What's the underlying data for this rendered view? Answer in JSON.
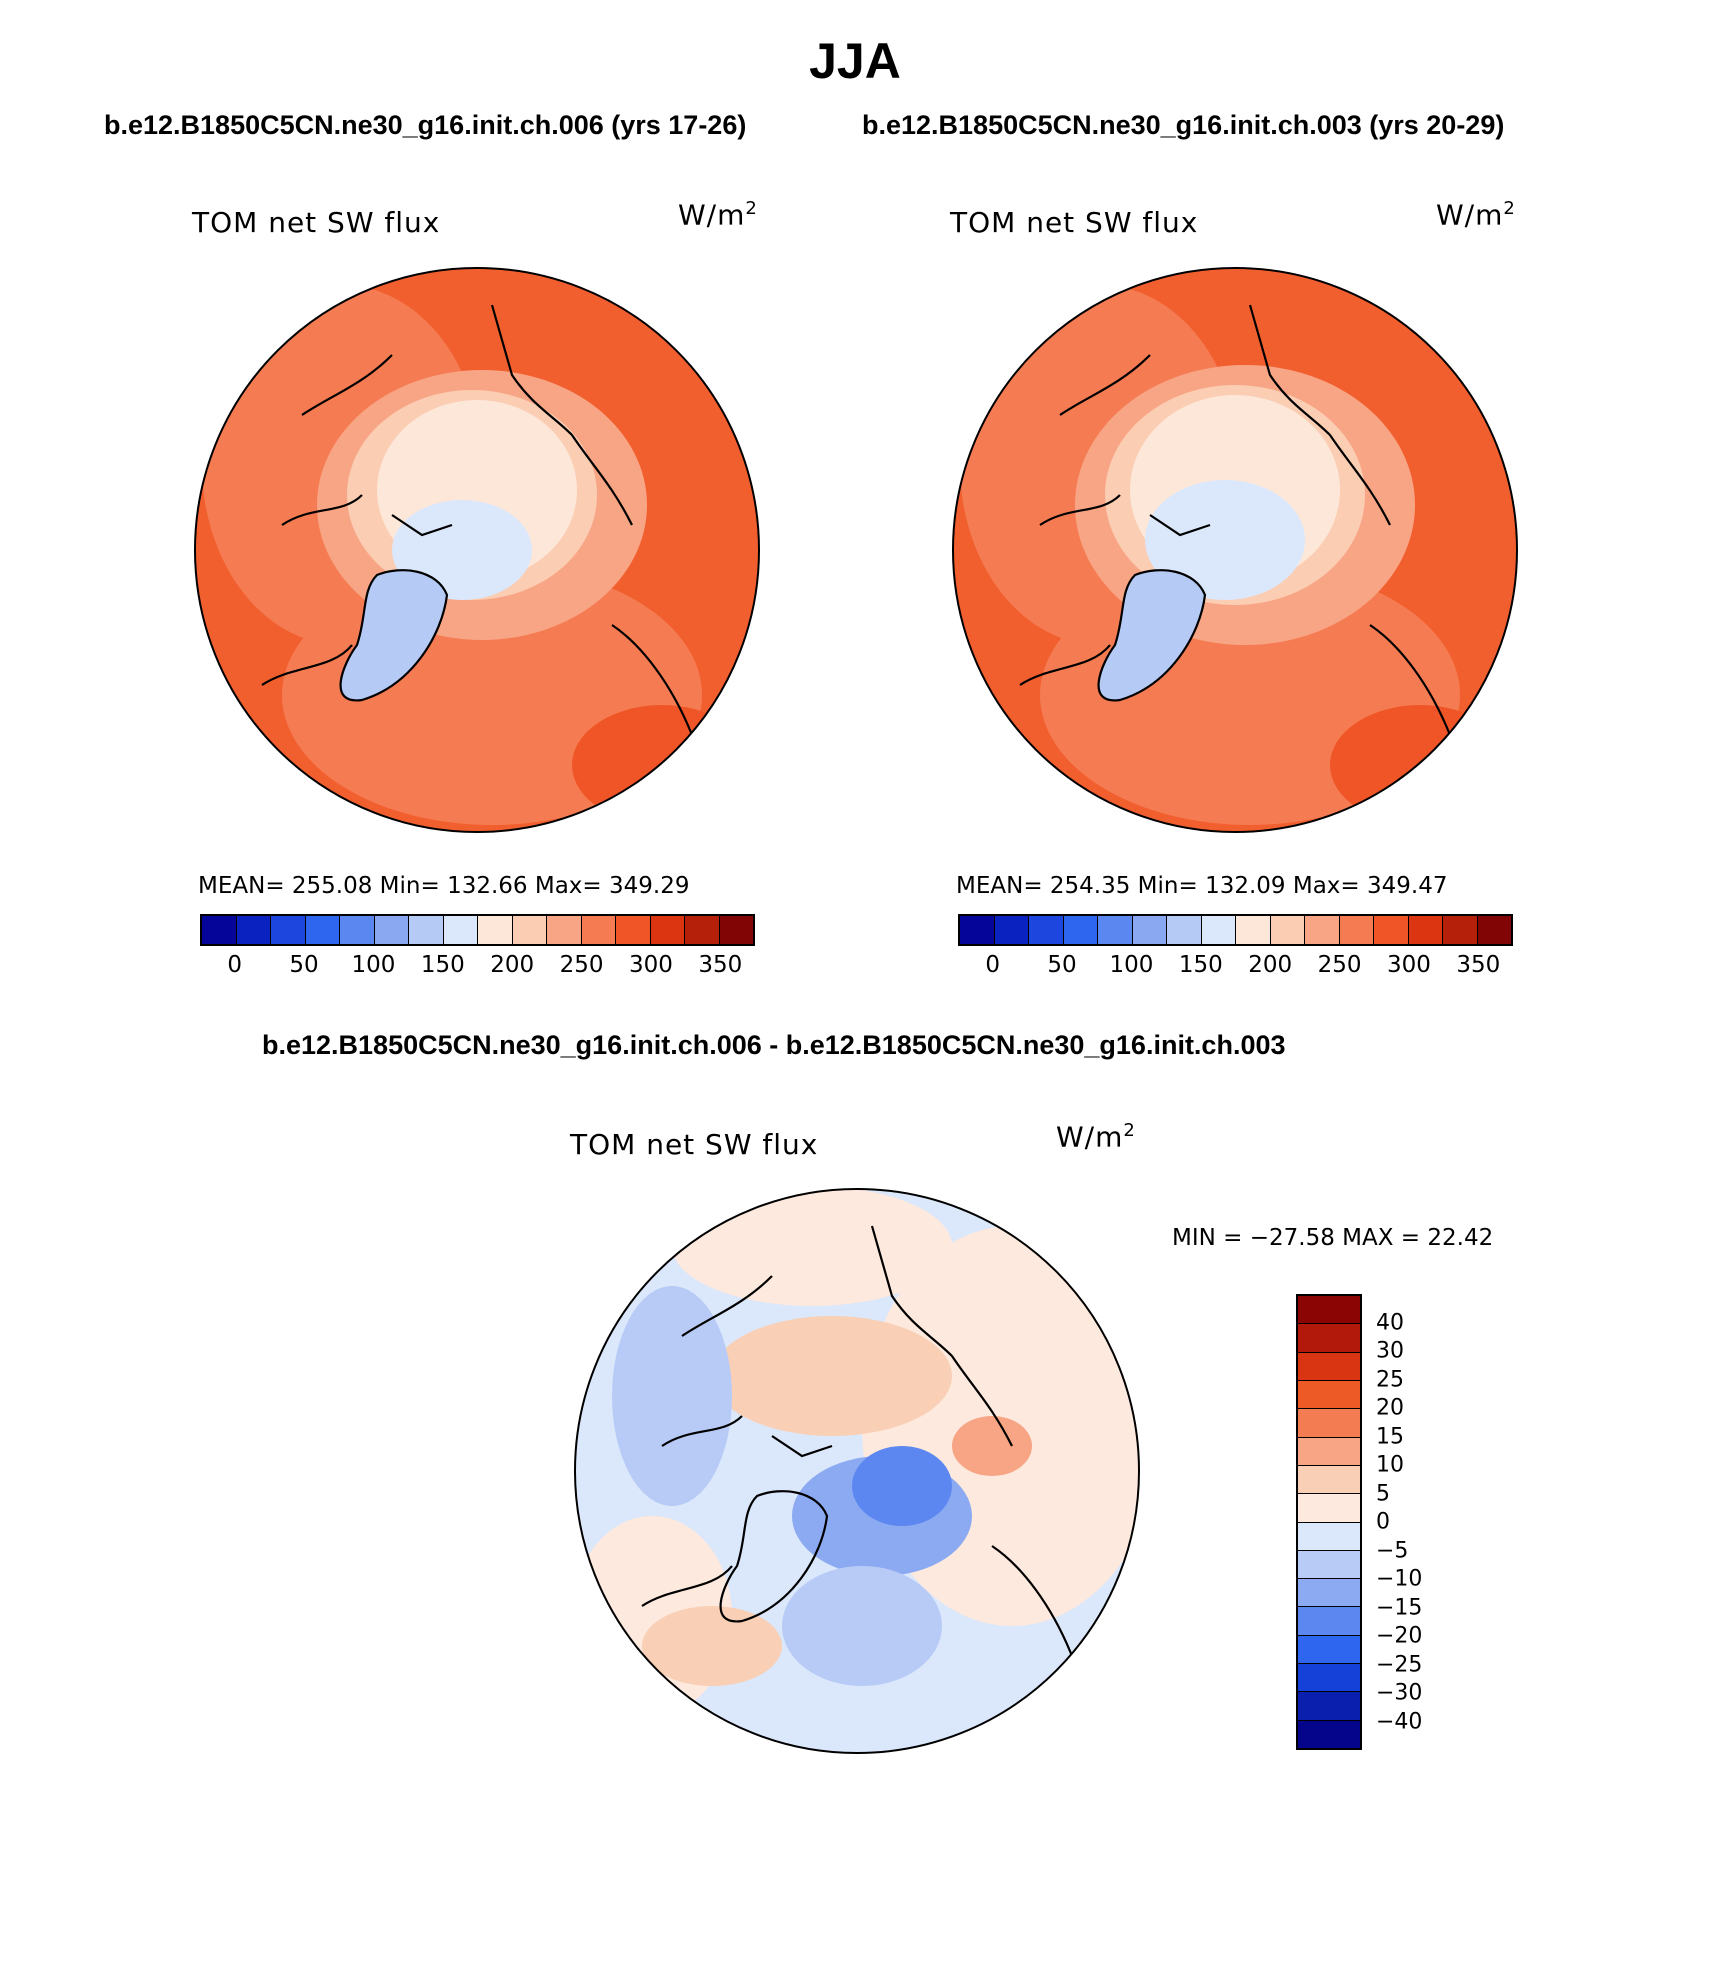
{
  "figure": {
    "title": "JJA",
    "subtitle_left": "b.e12.B1850C5CN.ne30_g16.init.ch.006 (yrs 17-26)",
    "subtitle_right": "b.e12.B1850C5CN.ne30_g16.init.ch.003 (yrs 20-29)",
    "diff_title": "b.e12.B1850C5CN.ne30_g16.init.ch.006 - b.e12.B1850C5CN.ne30_g16.init.ch.003"
  },
  "panels": [
    {
      "variable": "TOM net SW flux",
      "units_base": "W/m",
      "units_sup": "2",
      "stats": "MEAN= 255.08   Min= 132.66   Max= 349.29",
      "colorbar_ticks": [
        "0",
        "50",
        "100",
        "150",
        "200",
        "250",
        "300",
        "350"
      ]
    },
    {
      "variable": "TOM net SW flux",
      "units_base": "W/m",
      "units_sup": "2",
      "stats": "MEAN= 254.35   Min= 132.09   Max= 349.47",
      "colorbar_ticks": [
        "0",
        "50",
        "100",
        "150",
        "200",
        "250",
        "300",
        "350"
      ]
    },
    {
      "variable": "TOM net SW flux",
      "units_base": "W/m",
      "units_sup": "2",
      "stats": "MIN = −27.58 MAX =  22.42",
      "colorbar_ticks": [
        "40",
        "30",
        "25",
        "20",
        "15",
        "10",
        "5",
        "0",
        "−5",
        "−10",
        "−15",
        "−20",
        "−25",
        "−30",
        "−40"
      ]
    }
  ],
  "colors": {
    "abs_scale": [
      "#05059a",
      "#0a22c0",
      "#1c46de",
      "#2f66ef",
      "#5a87f0",
      "#8aa8f2",
      "#b6caf6",
      "#dbe7fb",
      "#fde7d9",
      "#fbcdb3",
      "#f8a585",
      "#f57c52",
      "#ef5527",
      "#dc3512",
      "#b5200a",
      "#820505"
    ],
    "diff_scale": [
      "#8c0505",
      "#b3190a",
      "#d93512",
      "#ee5a26",
      "#f47c52",
      "#f7a584",
      "#f9cfb6",
      "#fde9dd",
      "#dbe7fb",
      "#b8cbf6",
      "#8caaf2",
      "#5d87f0",
      "#2f66ef",
      "#1541d8",
      "#0b1fae",
      "#05058c"
    ]
  }
}
